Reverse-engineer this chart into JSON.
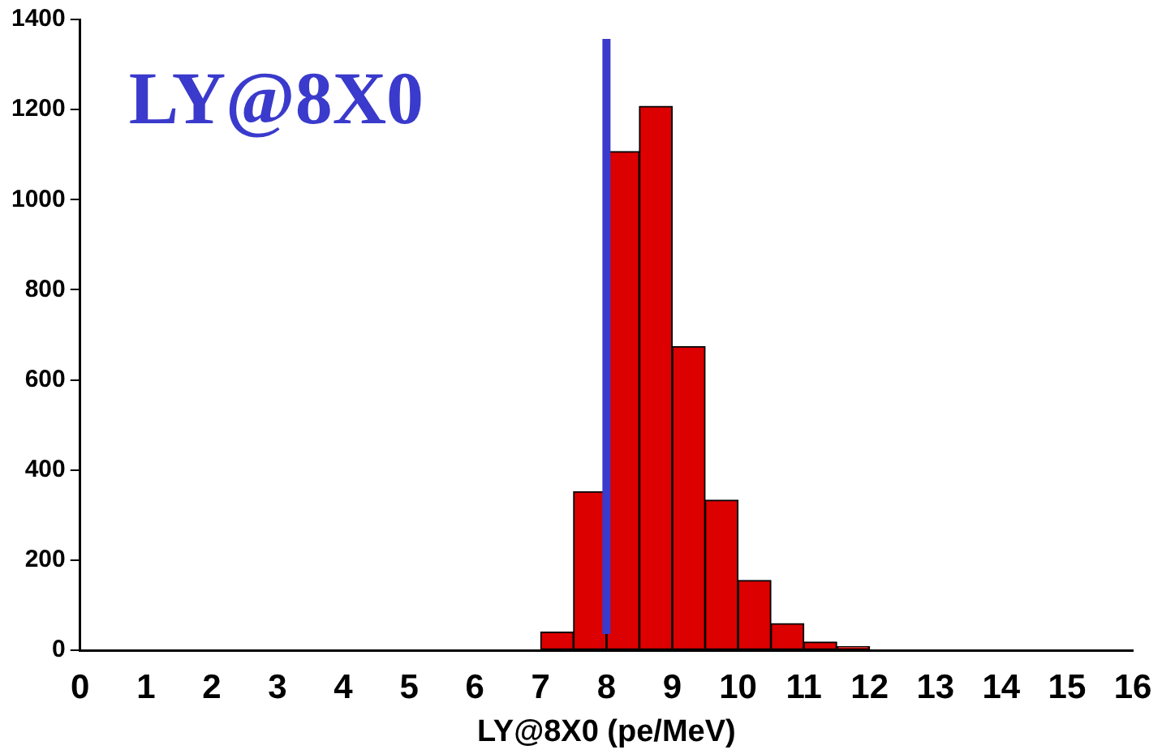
{
  "chart_data": {
    "type": "histogram",
    "xlabel": "LY@8X0 (pe/MeV)",
    "bins": [
      7,
      7.5,
      8,
      8.5,
      9,
      9.5,
      10,
      10.5,
      11,
      11.5,
      12
    ],
    "values": [
      40,
      352,
      1107,
      1207,
      674,
      333,
      155,
      59,
      18,
      8
    ],
    "color": "#dd0000",
    "xlim": [
      0,
      16
    ],
    "xticks": [
      0,
      1,
      2,
      3,
      4,
      5,
      6,
      7,
      8,
      9,
      10,
      11,
      12,
      13,
      14,
      15,
      16
    ],
    "ylim": [
      0,
      1400
    ],
    "yticks": [
      0,
      200,
      400,
      600,
      800,
      1000,
      1200,
      1400
    ],
    "grid": false,
    "legend": false,
    "ref_lines": [
      {
        "axis": "x",
        "value": 8,
        "color": "#3a3acc"
      }
    ],
    "annotations": [
      "LY@8X0"
    ]
  }
}
